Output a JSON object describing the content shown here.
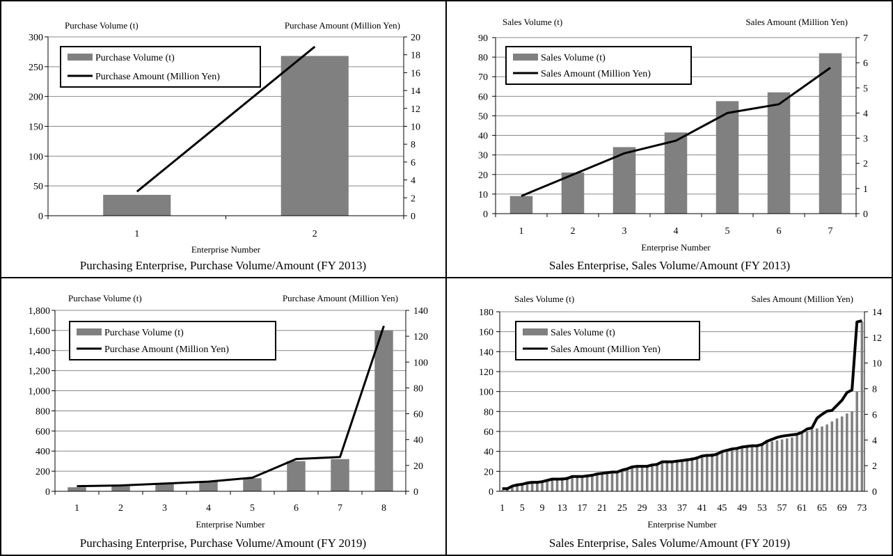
{
  "chart_data": [
    {
      "type": "bar",
      "title": "Purchasing Enterprise, Purchase Volume/Amount (FY 2013)",
      "xlabel": "Enterprise Number",
      "ylabel": "Purchase Volume (t)",
      "y2label": "Purchase Amount (Million Yen)",
      "categories": [
        "1",
        "2"
      ],
      "ylim": [
        0,
        300
      ],
      "y2lim": [
        0,
        20
      ],
      "yticks": [
        "0",
        "50",
        "100",
        "150",
        "200",
        "250",
        "300"
      ],
      "y2ticks": [
        "0",
        "2",
        "4",
        "6",
        "8",
        "10",
        "12",
        "14",
        "16",
        "18",
        "20"
      ],
      "legend": "top-left",
      "grid": true,
      "series": [
        {
          "name": "Purchase Volume (t)",
          "type": "bar",
          "axis": "left",
          "color": "#808080",
          "values": [
            35,
            268
          ]
        },
        {
          "name": "Purchase Amount (Million Yen)",
          "type": "line",
          "axis": "right",
          "color": "#000000",
          "values": [
            2.7,
            18.9
          ]
        }
      ]
    },
    {
      "type": "bar",
      "title": "Sales Enterprise, Sales Volume/Amount (FY 2013)",
      "xlabel": "Enterprise Number",
      "ylabel": "Sales Volume (t)",
      "y2label": "Sales Amount (Million Yen)",
      "categories": [
        "1",
        "2",
        "3",
        "4",
        "5",
        "6",
        "7"
      ],
      "ylim": [
        0,
        90
      ],
      "y2lim": [
        0,
        7
      ],
      "yticks": [
        "0",
        "10",
        "20",
        "30",
        "40",
        "50",
        "60",
        "70",
        "80",
        "90"
      ],
      "y2ticks": [
        "0",
        "1",
        "2",
        "3",
        "4",
        "5",
        "6",
        "7"
      ],
      "legend": "top-left",
      "grid": true,
      "series": [
        {
          "name": "Sales Volume (t)",
          "type": "bar",
          "axis": "left",
          "color": "#808080",
          "values": [
            9,
            21,
            34,
            41.5,
            57.5,
            62,
            82
          ]
        },
        {
          "name": "Sales Amount (Million Yen)",
          "type": "line",
          "axis": "right",
          "color": "#000000",
          "values": [
            0.7,
            1.55,
            2.4,
            2.9,
            4.0,
            4.35,
            5.8
          ]
        }
      ]
    },
    {
      "type": "bar",
      "title": "Purchasing Enterprise, Purchase Volume/Amount (FY 2019)",
      "xlabel": "Enterprise Number",
      "ylabel": "Purchase Volume (t)",
      "y2label": "Purchase Amount (Million Yen)",
      "categories": [
        "1",
        "2",
        "3",
        "4",
        "5",
        "6",
        "7",
        "8"
      ],
      "ylim": [
        0,
        1800
      ],
      "y2lim": [
        0,
        140
      ],
      "yticks": [
        "0",
        "200",
        "400",
        "600",
        "800",
        "1,000",
        "1,200",
        "1,400",
        "1,600",
        "1,800"
      ],
      "y2ticks": [
        "0",
        "20",
        "40",
        "60",
        "80",
        "100",
        "120",
        "140"
      ],
      "legend": "top-left",
      "grid": true,
      "series": [
        {
          "name": "Purchase Volume (t)",
          "type": "bar",
          "axis": "left",
          "color": "#808080",
          "values": [
            40,
            50,
            75,
            100,
            130,
            300,
            320,
            1600
          ]
        },
        {
          "name": "Purchase Amount (Million Yen)",
          "type": "line",
          "axis": "right",
          "color": "#000000",
          "values": [
            4,
            4.5,
            6,
            7.5,
            10.5,
            25,
            26.5,
            128
          ]
        }
      ]
    },
    {
      "type": "bar",
      "title": "Sales Enterprise, Sales Volume/Amount (FY 2019)",
      "xlabel": "Enterprise Number",
      "ylabel": "Sales Volume (t)",
      "y2label": "Sales Amount (Million Yen)",
      "categories": [
        "1",
        "2",
        "3",
        "4",
        "5",
        "6",
        "7",
        "8",
        "9",
        "10",
        "11",
        "12",
        "13",
        "14",
        "15",
        "16",
        "17",
        "18",
        "19",
        "20",
        "21",
        "22",
        "23",
        "24",
        "25",
        "26",
        "27",
        "28",
        "29",
        "30",
        "31",
        "32",
        "33",
        "34",
        "35",
        "36",
        "37",
        "38",
        "39",
        "40",
        "41",
        "42",
        "43",
        "44",
        "45",
        "46",
        "47",
        "48",
        "49",
        "50",
        "51",
        "52",
        "53",
        "54",
        "55",
        "56",
        "57",
        "58",
        "59",
        "60",
        "61",
        "62",
        "63",
        "64",
        "65",
        "66",
        "67",
        "68",
        "69",
        "70",
        "71",
        "72",
        "73"
      ],
      "xticks": [
        "1",
        "5",
        "9",
        "13",
        "17",
        "21",
        "25",
        "29",
        "33",
        "37",
        "41",
        "45",
        "49",
        "53",
        "57",
        "61",
        "65",
        "69",
        "73"
      ],
      "ylim": [
        0,
        180
      ],
      "y2lim": [
        0,
        14
      ],
      "yticks": [
        "0",
        "20",
        "40",
        "60",
        "80",
        "100",
        "120",
        "140",
        "160",
        "180"
      ],
      "y2ticks": [
        "0",
        "2",
        "4",
        "6",
        "8",
        "10",
        "12",
        "14"
      ],
      "legend": "top-left",
      "grid": true,
      "series": [
        {
          "name": "Sales Volume (t)",
          "type": "bar",
          "axis": "left",
          "color": "#808080",
          "values": [
            1,
            2,
            5,
            6,
            7,
            8,
            9,
            10,
            11,
            12,
            13,
            13.5,
            14,
            14.5,
            15,
            15.5,
            16,
            16.5,
            17,
            17.5,
            18,
            18.5,
            19,
            20,
            21,
            22,
            23,
            24,
            25,
            26,
            27,
            28,
            29,
            30,
            30.5,
            31,
            32,
            33,
            34,
            35,
            36,
            37,
            38,
            39,
            40,
            41,
            42,
            43,
            44,
            45,
            46,
            47,
            48,
            49,
            50,
            51,
            52,
            53,
            54,
            56,
            58,
            60,
            62,
            63,
            65,
            67,
            70,
            73,
            75,
            78,
            80,
            100,
            170
          ]
        },
        {
          "name": "Sales Amount (Million Yen)",
          "type": "line",
          "axis": "right",
          "color": "#000000",
          "values": [
            0.2,
            0.2,
            0.4,
            0.5,
            0.55,
            0.65,
            0.7,
            0.7,
            0.75,
            0.85,
            0.95,
            0.95,
            0.95,
            1.0,
            1.15,
            1.15,
            1.15,
            1.2,
            1.25,
            1.35,
            1.4,
            1.45,
            1.5,
            1.5,
            1.65,
            1.75,
            1.9,
            1.95,
            1.95,
            1.95,
            2.05,
            2.1,
            2.3,
            2.3,
            2.3,
            2.35,
            2.4,
            2.45,
            2.5,
            2.6,
            2.75,
            2.8,
            2.8,
            2.9,
            3.1,
            3.2,
            3.3,
            3.35,
            3.45,
            3.5,
            3.55,
            3.55,
            3.65,
            3.9,
            4.05,
            4.2,
            4.3,
            4.35,
            4.4,
            4.45,
            4.6,
            4.85,
            4.95,
            5.7,
            6.0,
            6.25,
            6.3,
            6.7,
            7.1,
            7.7,
            7.9,
            13.2,
            13.3
          ]
        }
      ]
    }
  ]
}
